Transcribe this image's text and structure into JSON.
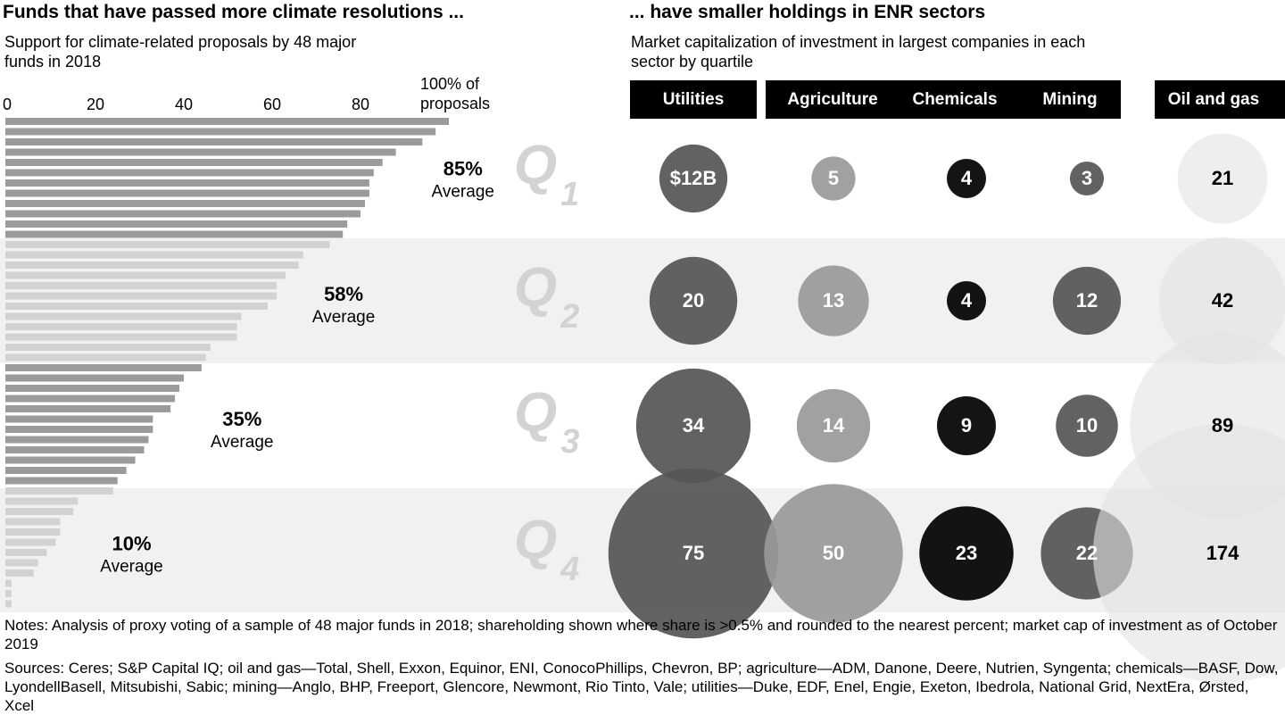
{
  "chart_data": [
    {
      "type": "hbar",
      "title": "Funds that have passed more climate resolutions ...",
      "subtitle": "Support for climate-related proposals by 48 major funds in 2018",
      "xlim": [
        0,
        100
      ],
      "xticks": [
        0,
        20,
        40,
        60,
        80,
        {
          "value": 100,
          "label": "100% of proposals"
        }
      ],
      "average_label": "Average",
      "groups": [
        {
          "color": "#9b9b9b",
          "values": [
            100,
            97,
            94,
            88,
            85,
            83,
            82,
            82,
            81,
            80,
            77,
            76
          ],
          "average": {
            "value": 85,
            "label": "85%"
          }
        },
        {
          "color": "#d2d2d2",
          "values": [
            73,
            67,
            66,
            63,
            61,
            61,
            59,
            53,
            52,
            52,
            46,
            45
          ],
          "average": {
            "value": 58,
            "label": "58%"
          }
        },
        {
          "color": "#9b9b9b",
          "values": [
            44,
            40,
            39,
            38,
            37,
            33,
            33,
            32,
            31,
            29,
            27,
            25
          ],
          "average": {
            "value": 35,
            "label": "35%"
          }
        },
        {
          "color": "#d2d2d2",
          "values": [
            24,
            16,
            15,
            12,
            12,
            11,
            9,
            7,
            6,
            1,
            1,
            1
          ],
          "average": {
            "value": 10,
            "label": "10%"
          }
        }
      ]
    },
    {
      "type": "bubble",
      "title": "... have smaller holdings in ENR sectors",
      "subtitle": "Market capitalization of investment in largest companies in each sector by quartile",
      "rows": [
        "Q1",
        "Q2",
        "Q3",
        "Q4"
      ],
      "series": [
        {
          "name": "Utilities",
          "color": "#555555",
          "label_color": "#ffffff",
          "values": [
            12,
            20,
            34,
            75
          ],
          "value_labels": [
            "$12B",
            "20",
            "34",
            "75"
          ]
        },
        {
          "name": "Agriculture",
          "color": "#999999",
          "label_color": "#ffffff",
          "values": [
            5,
            13,
            14,
            50
          ]
        },
        {
          "name": "Chemicals",
          "color": "#000000",
          "label_color": "#ffffff",
          "values": [
            4,
            4,
            9,
            23
          ]
        },
        {
          "name": "Mining",
          "color": "#555555",
          "label_color": "#ffffff",
          "values": [
            3,
            12,
            10,
            22
          ]
        },
        {
          "name": "Oil and gas",
          "color": "#e2e2e2",
          "label_color": "#000000",
          "values": [
            21,
            42,
            89,
            174
          ]
        }
      ]
    }
  ],
  "notes": "Notes: Analysis of proxy voting of a sample of 48 major funds in 2018; shareholding shown where share is >0.5% and rounded to the nearest percent; market cap of investment as of October 2019",
  "sources": "Sources: Ceres; S&P Capital IQ; oil and gas—Total, Shell, Exxon, Equinor, ENI, ConocoPhillips, Chevron, BP; agriculture—ADM, Danone, Deere, Nutrien, Syngenta; chemicals—BASF, Dow, LyondellBasell, Mitsubishi, Sabic; mining—Anglo, BHP, Freeport, Glencore, Newmont, Rio Tinto, Vale; utilities—Duke, EDF, Enel, Engie, Exeton, Ibedrola, National Grid, NextEra, Ørsted, Xcel"
}
